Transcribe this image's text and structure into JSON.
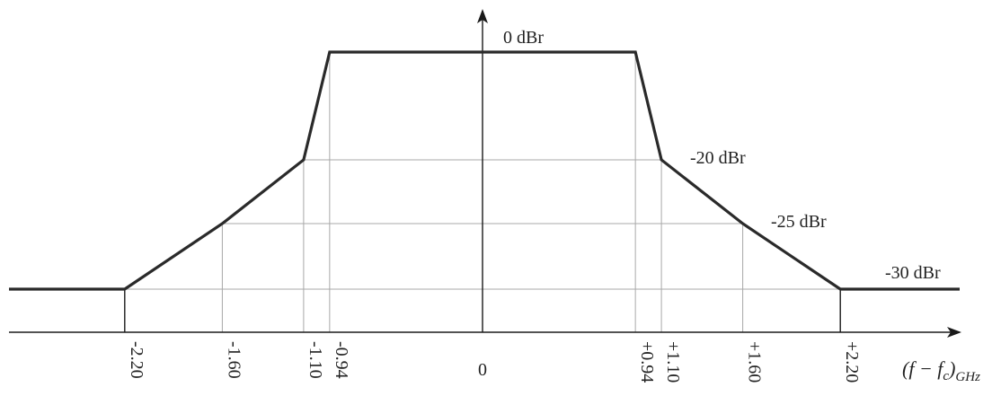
{
  "diagram": {
    "x_axis_label": {
      "main": "(f − f",
      "sub_c": "c",
      "close": ")",
      "sub_unit": "GHz"
    },
    "ticks": [
      {
        "value": -2.2,
        "label": "-2.20"
      },
      {
        "value": -1.6,
        "label": "-1.60"
      },
      {
        "value": -1.1,
        "label": "-1.10"
      },
      {
        "value": -0.94,
        "label": "-0.94"
      },
      {
        "value": 0,
        "label": "0"
      },
      {
        "value": 0.94,
        "label": "+0.94"
      },
      {
        "value": 1.1,
        "label": "+1.10"
      },
      {
        "value": 1.6,
        "label": "+1.60"
      },
      {
        "value": 2.2,
        "label": "+2.20"
      }
    ],
    "levels": [
      {
        "value": 0,
        "label": "0 dBr"
      },
      {
        "value": -20,
        "label": "-20 dBr"
      },
      {
        "value": -25,
        "label": "-25 dBr"
      },
      {
        "value": -30,
        "label": "-30 dBr"
      }
    ],
    "mask_points": [
      {
        "f": -2.2,
        "dBr": -30
      },
      {
        "f": -1.6,
        "dBr": -25
      },
      {
        "f": -1.1,
        "dBr": -20
      },
      {
        "f": -0.94,
        "dBr": 0
      },
      {
        "f": 0.94,
        "dBr": 0
      },
      {
        "f": 1.1,
        "dBr": -20
      },
      {
        "f": 1.6,
        "dBr": -25
      },
      {
        "f": 2.2,
        "dBr": -30
      }
    ],
    "colors": {
      "mask_line": "#2a2a2a",
      "grid_line": "#a8a8a8",
      "axis_line": "#1a1a1a",
      "text": "#222222"
    }
  }
}
